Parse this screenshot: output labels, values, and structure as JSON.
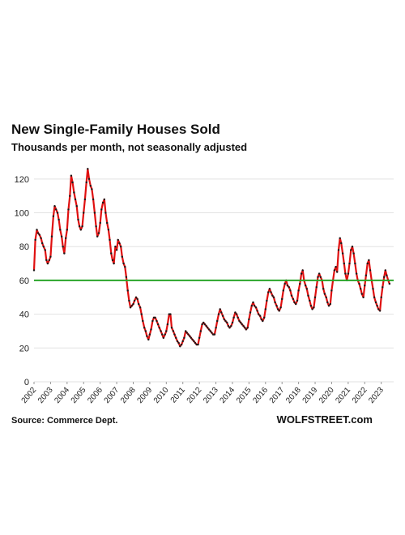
{
  "header": {
    "title": "New Single-Family  Houses Sold",
    "subtitle": "Thousands per month, not seasonally adjusted"
  },
  "footer": {
    "source": "Source: Commerce Dept.",
    "brand": "WOLFSTREET.com"
  },
  "colors": {
    "series_line": "#e01010",
    "series_marker": "#1a1a1a",
    "reference_line": "#2aa52a",
    "grid": "#e2e2e2"
  },
  "chart_data": {
    "type": "line",
    "title": "New Single-Family  Houses Sold",
    "subtitle": "Thousands per month, not seasonally adjusted",
    "xlabel": "",
    "ylabel": "",
    "ylim": [
      0,
      130
    ],
    "xlim": [
      2002,
      2023.75
    ],
    "yticks": [
      "0",
      "20",
      "40",
      "60",
      "80",
      "100",
      "120"
    ],
    "xticks": [
      "2002",
      "2003",
      "2004",
      "2005",
      "2006",
      "2007",
      "2008",
      "2009",
      "2010",
      "2011",
      "2012",
      "2013",
      "2014",
      "2015",
      "2016",
      "2017",
      "2018",
      "2019",
      "2020",
      "2021",
      "2022",
      "2023"
    ],
    "grid": "horizontal",
    "reference_line": {
      "y": 60
    },
    "series": [
      {
        "x": [
          2002.0,
          2002.08,
          2002.17,
          2002.25,
          2002.33,
          2002.42,
          2002.5,
          2002.58,
          2002.67,
          2002.75,
          2002.83,
          2002.92,
          2003.0,
          2003.08,
          2003.17,
          2003.25,
          2003.33,
          2003.42,
          2003.5,
          2003.58,
          2003.67,
          2003.75,
          2003.83,
          2003.92,
          2004.0,
          2004.08,
          2004.17,
          2004.25,
          2004.33,
          2004.42,
          2004.5,
          2004.58,
          2004.67,
          2004.75,
          2004.83,
          2004.92,
          2005.0,
          2005.08,
          2005.17,
          2005.25,
          2005.33,
          2005.42,
          2005.5,
          2005.58,
          2005.67,
          2005.75,
          2005.83,
          2005.92,
          2006.0,
          2006.08,
          2006.17,
          2006.25,
          2006.33,
          2006.42,
          2006.5,
          2006.58,
          2006.67,
          2006.75,
          2006.83,
          2006.92,
          2007.0,
          2007.08,
          2007.17,
          2007.25,
          2007.33,
          2007.42,
          2007.5,
          2007.58,
          2007.67,
          2007.75,
          2007.83,
          2007.92,
          2008.0,
          2008.08,
          2008.17,
          2008.25,
          2008.33,
          2008.42,
          2008.5,
          2008.58,
          2008.67,
          2008.75,
          2008.83,
          2008.92,
          2009.0,
          2009.08,
          2009.17,
          2009.25,
          2009.33,
          2009.42,
          2009.5,
          2009.58,
          2009.67,
          2009.75,
          2009.83,
          2009.92,
          2010.0,
          2010.08,
          2010.17,
          2010.25,
          2010.33,
          2010.42,
          2010.5,
          2010.58,
          2010.67,
          2010.75,
          2010.83,
          2010.92,
          2011.0,
          2011.08,
          2011.17,
          2011.25,
          2011.33,
          2011.42,
          2011.5,
          2011.58,
          2011.67,
          2011.75,
          2011.83,
          2011.92,
          2012.0,
          2012.08,
          2012.17,
          2012.25,
          2012.33,
          2012.42,
          2012.5,
          2012.58,
          2012.67,
          2012.75,
          2012.83,
          2012.92,
          2013.0,
          2013.08,
          2013.17,
          2013.25,
          2013.33,
          2013.42,
          2013.5,
          2013.58,
          2013.67,
          2013.75,
          2013.83,
          2013.92,
          2014.0,
          2014.08,
          2014.17,
          2014.25,
          2014.33,
          2014.42,
          2014.5,
          2014.58,
          2014.67,
          2014.75,
          2014.83,
          2014.92,
          2015.0,
          2015.08,
          2015.17,
          2015.25,
          2015.33,
          2015.42,
          2015.5,
          2015.58,
          2015.67,
          2015.75,
          2015.83,
          2015.92,
          2016.0,
          2016.08,
          2016.17,
          2016.25,
          2016.33,
          2016.42,
          2016.5,
          2016.58,
          2016.67,
          2016.75,
          2016.83,
          2016.92,
          2017.0,
          2017.08,
          2017.17,
          2017.25,
          2017.33,
          2017.42,
          2017.5,
          2017.58,
          2017.67,
          2017.75,
          2017.83,
          2017.92,
          2018.0,
          2018.08,
          2018.17,
          2018.25,
          2018.33,
          2018.42,
          2018.5,
          2018.58,
          2018.67,
          2018.75,
          2018.83,
          2018.92,
          2019.0,
          2019.08,
          2019.17,
          2019.25,
          2019.33,
          2019.42,
          2019.5,
          2019.58,
          2019.67,
          2019.75,
          2019.83,
          2019.92,
          2020.0,
          2020.08,
          2020.17,
          2020.25,
          2020.33,
          2020.42,
          2020.5,
          2020.58,
          2020.67,
          2020.75,
          2020.83,
          2020.92,
          2021.0,
          2021.08,
          2021.17,
          2021.25,
          2021.33,
          2021.42,
          2021.5,
          2021.58,
          2021.67,
          2021.75,
          2021.83,
          2021.92,
          2022.0,
          2022.08,
          2022.17,
          2022.25,
          2022.33,
          2022.42,
          2022.5,
          2022.58,
          2022.67,
          2022.75,
          2022.83,
          2022.92,
          2023.0,
          2023.08,
          2023.17,
          2023.25,
          2023.33,
          2023.42,
          2023.5
        ],
        "values": [
          66,
          84,
          90,
          88,
          87,
          85,
          82,
          80,
          78,
          72,
          70,
          72,
          74,
          86,
          98,
          104,
          102,
          100,
          96,
          90,
          86,
          80,
          76,
          85,
          90,
          102,
          110,
          122,
          118,
          112,
          108,
          104,
          96,
          92,
          90,
          92,
          100,
          108,
          118,
          126,
          120,
          116,
          114,
          108,
          100,
          92,
          86,
          88,
          94,
          102,
          106,
          108,
          100,
          94,
          90,
          84,
          76,
          72,
          70,
          80,
          78,
          84,
          82,
          80,
          74,
          70,
          68,
          62,
          54,
          48,
          44,
          45,
          46,
          48,
          50,
          49,
          46,
          44,
          40,
          36,
          32,
          30,
          27,
          25,
          28,
          31,
          36,
          38,
          38,
          36,
          34,
          32,
          30,
          28,
          26,
          28,
          30,
          34,
          40,
          40,
          32,
          30,
          28,
          26,
          24,
          23,
          21,
          22,
          24,
          26,
          30,
          29,
          28,
          27,
          26,
          25,
          24,
          23,
          22,
          22,
          26,
          30,
          34,
          35,
          34,
          33,
          32,
          31,
          30,
          29,
          28,
          28,
          32,
          36,
          40,
          43,
          41,
          39,
          37,
          36,
          35,
          33,
          32,
          33,
          35,
          38,
          41,
          40,
          38,
          36,
          35,
          34,
          33,
          32,
          31,
          32,
          37,
          41,
          45,
          47,
          45,
          44,
          42,
          40,
          39,
          37,
          36,
          38,
          43,
          48,
          53,
          55,
          53,
          51,
          50,
          47,
          45,
          43,
          42,
          44,
          49,
          54,
          58,
          60,
          57,
          56,
          54,
          51,
          49,
          47,
          46,
          48,
          54,
          58,
          64,
          66,
          60,
          57,
          55,
          51,
          48,
          45,
          43,
          44,
          50,
          56,
          62,
          64,
          62,
          60,
          55,
          52,
          50,
          47,
          45,
          46,
          54,
          60,
          66,
          68,
          65,
          78,
          85,
          82,
          76,
          70,
          64,
          60,
          64,
          70,
          78,
          80,
          76,
          70,
          64,
          60,
          58,
          55,
          52,
          50,
          57,
          63,
          70,
          72,
          66,
          60,
          55,
          50,
          47,
          45,
          43,
          42,
          50,
          56,
          62,
          66,
          63,
          60,
          58
        ]
      }
    ]
  }
}
